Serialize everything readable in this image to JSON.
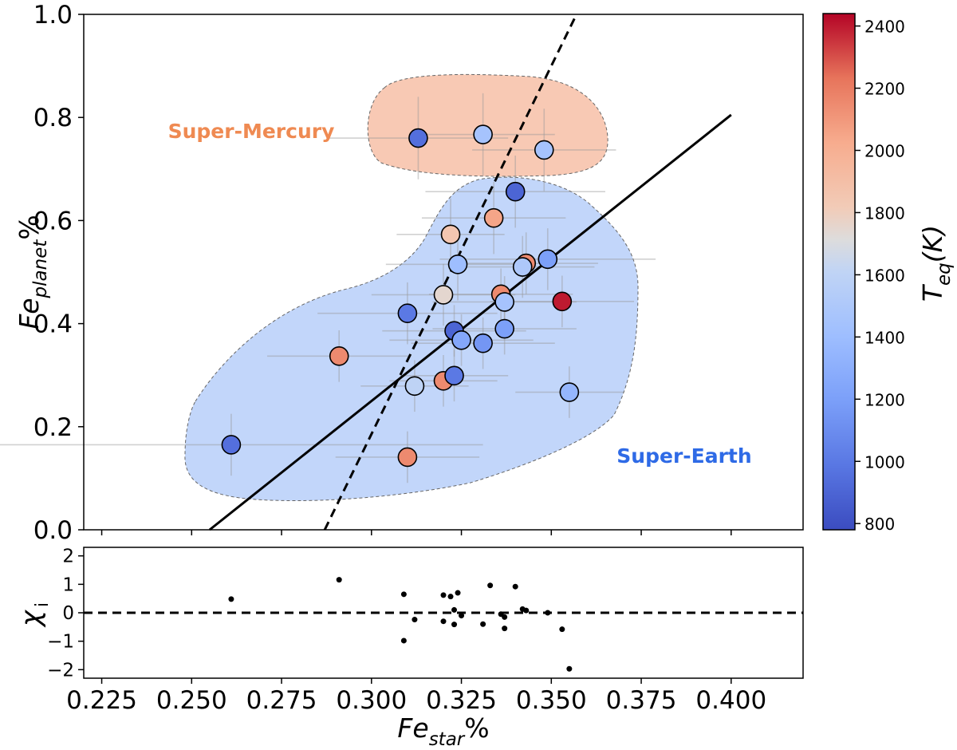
{
  "chart_data": [
    {
      "type": "scatter",
      "title": "",
      "xlabel": "Fe_star%",
      "ylabel": "Fe_planet%",
      "xlim": [
        0.22,
        0.42
      ],
      "ylim": [
        0.0,
        1.0
      ],
      "xticks": [
        "0.225",
        "0.250",
        "0.275",
        "0.300",
        "0.325",
        "0.350",
        "0.375",
        "0.400"
      ],
      "yticks": [
        "0.0",
        "0.2",
        "0.4",
        "0.6",
        "0.8",
        "1.0"
      ],
      "colorbar": {
        "label": "T_eq(K)",
        "min": 780,
        "max": 2440,
        "ticks": [
          "800",
          "1000",
          "1200",
          "1400",
          "1600",
          "1800",
          "2000",
          "2200",
          "2400"
        ]
      },
      "regions": [
        {
          "name": "Super-Mercury",
          "color": "#f4a582"
        },
        {
          "name": "Super-Earth",
          "color": "#8fb4f5"
        }
      ],
      "fit_lines": [
        {
          "style": "solid",
          "from": [
            0.255,
            0.0
          ],
          "to": [
            0.4,
            0.805
          ]
        },
        {
          "style": "dashed",
          "from": [
            0.287,
            0.0
          ],
          "to": [
            0.357,
            1.0
          ]
        }
      ],
      "points": [
        {
          "x": 0.261,
          "y": 0.165,
          "xerr": 0.07,
          "yerr": 0.06,
          "teq": 950
        },
        {
          "x": 0.291,
          "y": 0.337,
          "xerr": 0.02,
          "yerr": 0.05,
          "teq": 2150
        },
        {
          "x": 0.31,
          "y": 0.141,
          "xerr": 0.02,
          "yerr": 0.05,
          "teq": 2150
        },
        {
          "x": 0.31,
          "y": 0.42,
          "xerr": 0.025,
          "yerr": 0.06,
          "teq": 1000
        },
        {
          "x": 0.312,
          "y": 0.279,
          "xerr": 0.015,
          "yerr": 0.05,
          "teq": 1600
        },
        {
          "x": 0.313,
          "y": 0.76,
          "xerr": 0.025,
          "yerr": 0.08,
          "teq": 950
        },
        {
          "x": 0.32,
          "y": 0.289,
          "xerr": 0.015,
          "yerr": 0.05,
          "teq": 2150
        },
        {
          "x": 0.32,
          "y": 0.456,
          "xerr": 0.02,
          "yerr": 0.06,
          "teq": 1750
        },
        {
          "x": 0.322,
          "y": 0.573,
          "xerr": 0.015,
          "yerr": 0.07,
          "teq": 1850
        },
        {
          "x": 0.323,
          "y": 0.386,
          "xerr": 0.02,
          "yerr": 0.05,
          "teq": 900
        },
        {
          "x": 0.323,
          "y": 0.299,
          "xerr": 0.015,
          "yerr": 0.05,
          "teq": 1000
        },
        {
          "x": 0.324,
          "y": 0.515,
          "xerr": 0.02,
          "yerr": 0.07,
          "teq": 1400
        },
        {
          "x": 0.325,
          "y": 0.368,
          "xerr": 0.02,
          "yerr": 0.05,
          "teq": 1250
        },
        {
          "x": 0.331,
          "y": 0.767,
          "xerr": 0.02,
          "yerr": 0.08,
          "teq": 1450
        },
        {
          "x": 0.331,
          "y": 0.362,
          "xerr": 0.02,
          "yerr": 0.05,
          "teq": 1150
        },
        {
          "x": 0.334,
          "y": 0.605,
          "xerr": 0.02,
          "yerr": 0.07,
          "teq": 2050
        },
        {
          "x": 0.336,
          "y": 0.457,
          "xerr": 0.02,
          "yerr": 0.05,
          "teq": 2150
        },
        {
          "x": 0.337,
          "y": 0.39,
          "xerr": 0.02,
          "yerr": 0.05,
          "teq": 1200
        },
        {
          "x": 0.337,
          "y": 0.442,
          "xerr": 0.02,
          "yerr": 0.05,
          "teq": 1450
        },
        {
          "x": 0.34,
          "y": 0.656,
          "xerr": 0.025,
          "yerr": 0.07,
          "teq": 900
        },
        {
          "x": 0.343,
          "y": 0.517,
          "xerr": 0.02,
          "yerr": 0.06,
          "teq": 2150
        },
        {
          "x": 0.342,
          "y": 0.51,
          "xerr": 0.02,
          "yerr": 0.06,
          "teq": 1500
        },
        {
          "x": 0.348,
          "y": 0.737,
          "xerr": 0.02,
          "yerr": 0.08,
          "teq": 1450
        },
        {
          "x": 0.349,
          "y": 0.525,
          "xerr": 0.03,
          "yerr": 0.06,
          "teq": 1200
        },
        {
          "x": 0.353,
          "y": 0.443,
          "xerr": 0.02,
          "yerr": 0.05,
          "teq": 2400
        },
        {
          "x": 0.355,
          "y": 0.267,
          "xerr": 0.015,
          "yerr": 0.05,
          "teq": 1350
        }
      ]
    },
    {
      "type": "scatter",
      "title": "",
      "xlabel": "Fe_star%",
      "ylabel": "χ_i",
      "xlim": [
        0.22,
        0.42
      ],
      "ylim": [
        -2.3,
        2.3
      ],
      "yticks": [
        "−2",
        "−1",
        "0",
        "1",
        "2"
      ],
      "reference_line": {
        "y": 0,
        "style": "dashed"
      },
      "points": [
        {
          "x": 0.261,
          "y": 0.48
        },
        {
          "x": 0.291,
          "y": 1.16
        },
        {
          "x": 0.309,
          "y": 0.65
        },
        {
          "x": 0.309,
          "y": -0.98
        },
        {
          "x": 0.312,
          "y": -0.24
        },
        {
          "x": 0.32,
          "y": -0.3
        },
        {
          "x": 0.32,
          "y": 0.62
        },
        {
          "x": 0.322,
          "y": 0.57
        },
        {
          "x": 0.323,
          "y": -0.41
        },
        {
          "x": 0.323,
          "y": 0.1
        },
        {
          "x": 0.324,
          "y": 0.7
        },
        {
          "x": 0.325,
          "y": -0.1
        },
        {
          "x": 0.331,
          "y": -0.4
        },
        {
          "x": 0.333,
          "y": 0.96
        },
        {
          "x": 0.336,
          "y": -0.05
        },
        {
          "x": 0.337,
          "y": -0.55
        },
        {
          "x": 0.337,
          "y": -0.15
        },
        {
          "x": 0.34,
          "y": 0.92
        },
        {
          "x": 0.342,
          "y": 0.13
        },
        {
          "x": 0.343,
          "y": 0.08
        },
        {
          "x": 0.349,
          "y": 0.0
        },
        {
          "x": 0.353,
          "y": -0.58
        },
        {
          "x": 0.355,
          "y": -1.97
        }
      ]
    }
  ]
}
